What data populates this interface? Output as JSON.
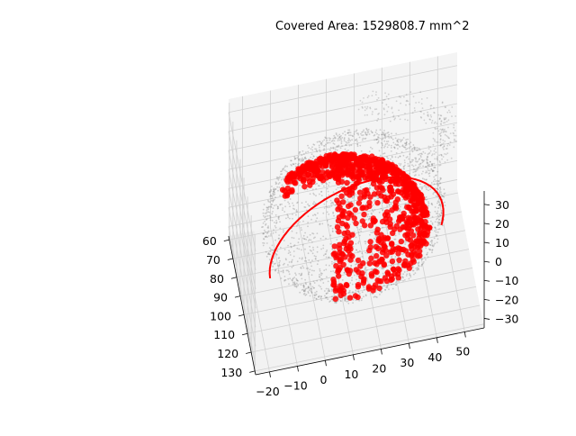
{
  "chart_data": {
    "type": "scatter",
    "projection": "3d",
    "title": "Covered Area: 1529808.7 mm^2",
    "xlabel": "",
    "ylabel": "",
    "zlabel": "",
    "xlim": [
      58,
      132
    ],
    "ylim": [
      -25,
      57
    ],
    "zlim": [
      -35,
      37
    ],
    "xticks": [
      "60",
      "70",
      "80",
      "90",
      "100",
      "110",
      "120",
      "130"
    ],
    "yticks": [
      "−20",
      "−10",
      "0",
      "10",
      "20",
      "30",
      "40",
      "50"
    ],
    "zticks": [
      "30",
      "20",
      "10",
      "0",
      "−10",
      "−20",
      "−30"
    ],
    "grid": true,
    "series": [
      {
        "role": "scanned-surface-points",
        "shape": "near-spherical shell with upper cap fragment",
        "center": [
          95,
          15,
          0
        ],
        "radius": 32,
        "approx_points": 2000,
        "color": "#808080",
        "opacity": 0.35
      },
      {
        "role": "covered-region-points",
        "shape": "upper-front hemisphere cap of the shell",
        "center": [
          95,
          15,
          0
        ],
        "radius": 32,
        "approx_points": 900,
        "color": "#ff0000",
        "opacity": 0.85
      }
    ],
    "colors": {
      "surface": "#808080",
      "covered": "#ff0000",
      "pane": "#f2f2f2",
      "grid": "#d0d0d0"
    }
  }
}
